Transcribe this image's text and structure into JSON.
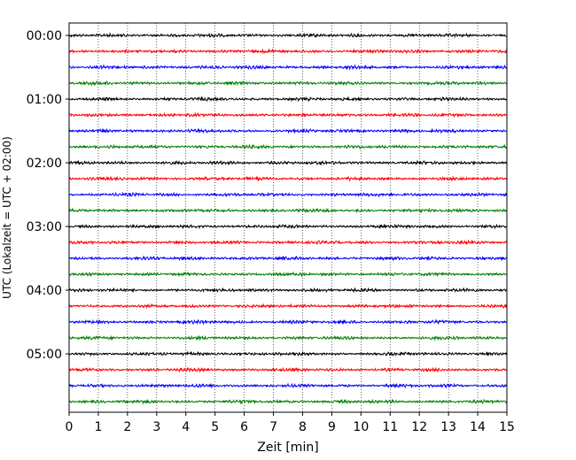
{
  "chart_data": {
    "type": "line",
    "title": "",
    "xlabel": "Zeit  [min]",
    "ylabel": "UTC (Lokalzeit = UTC + 02:00)",
    "xlim": [
      0,
      15
    ],
    "xticks": [
      0,
      1,
      2,
      3,
      4,
      5,
      6,
      7,
      8,
      9,
      10,
      11,
      12,
      13,
      14,
      15
    ],
    "grid_x": true,
    "grid_style": "dotted",
    "trace_interval_min": 15,
    "trace_count": 24,
    "trace_colors": [
      "#000000",
      "#ff0000",
      "#0000ff",
      "#008000"
    ],
    "hour_labels": [
      {
        "label": "00:00",
        "trace_index": 0
      },
      {
        "label": "01:00",
        "trace_index": 4
      },
      {
        "label": "02:00",
        "trace_index": 8
      },
      {
        "label": "03:00",
        "trace_index": 12
      },
      {
        "label": "04:00",
        "trace_index": 16
      },
      {
        "label": "05:00",
        "trace_index": 20
      }
    ]
  }
}
